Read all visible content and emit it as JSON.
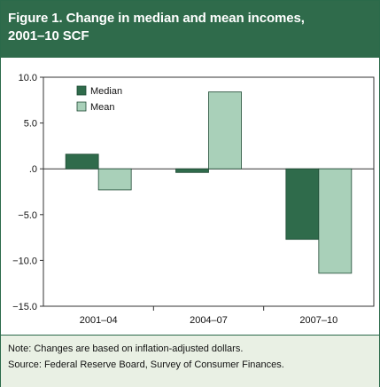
{
  "figure": {
    "title_line1": "Figure 1. Change in median and mean incomes,",
    "title_line2": "2001–10 SCF",
    "note": "Note: Changes are based on inflation-adjusted dollars.",
    "source": "Source: Federal Reserve Board, Survey of Consumer Finances."
  },
  "colors": {
    "header": "#2f6b4b",
    "median": "#2f6b4b",
    "mean": "#a9d0b9",
    "footer": "#e9f0e4"
  },
  "chart_data": {
    "type": "bar",
    "categories": [
      "2001–04",
      "2004–07",
      "2007–10"
    ],
    "series": [
      {
        "name": "Median",
        "values": [
          1.6,
          -0.4,
          -7.7
        ]
      },
      {
        "name": "Mean",
        "values": [
          -2.3,
          8.4,
          -11.4
        ]
      }
    ],
    "ylim": [
      -15,
      10
    ],
    "yticks": [
      10,
      5,
      0,
      -5,
      -10,
      -15
    ],
    "ytick_labels": [
      "10.0",
      "5.0",
      ".0",
      "−5.0",
      "−10.0",
      "−15.0"
    ],
    "legend": "top-left",
    "grid": false
  }
}
